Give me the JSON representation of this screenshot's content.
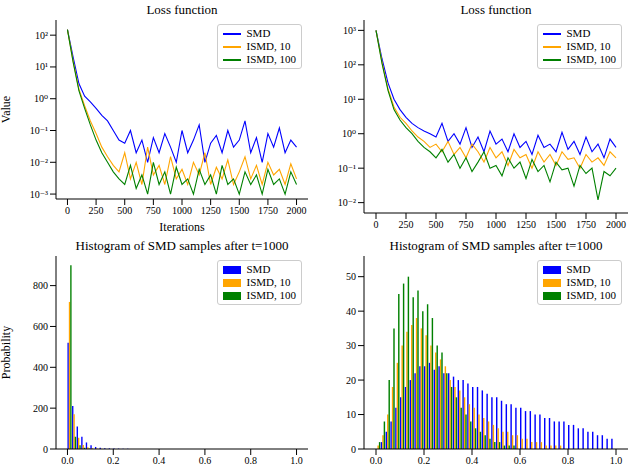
{
  "chart_data": [
    {
      "type": "line",
      "title": "Loss function",
      "xlabel": "Iterations",
      "ylabel": "Value",
      "log": "y",
      "legend": "upper right",
      "x": [
        0,
        50,
        100,
        150,
        200,
        250,
        300,
        350,
        400,
        450,
        500,
        550,
        600,
        650,
        700,
        750,
        800,
        850,
        900,
        950,
        1000,
        1050,
        1100,
        1150,
        1200,
        1250,
        1300,
        1350,
        1400,
        1450,
        1500,
        1550,
        1600,
        1650,
        1700,
        1750,
        1800,
        1850,
        1900,
        1950,
        2000
      ],
      "xlim": [
        -100,
        2100
      ],
      "xticks": [
        0,
        250,
        500,
        750,
        1000,
        1250,
        1500,
        1750,
        2000
      ],
      "ylim": [
        0.0007,
        300
      ],
      "yticks": [
        {
          "value": 0.001,
          "label": "10⁻³"
        },
        {
          "value": 0.01,
          "label": "10⁻²"
        },
        {
          "value": 0.1,
          "label": "10⁻¹"
        },
        {
          "value": 1,
          "label": "10⁰"
        },
        {
          "value": 10,
          "label": "10¹"
        },
        {
          "value": 100,
          "label": "10²"
        }
      ],
      "series": [
        {
          "name": "SMD",
          "color": "#0000ff",
          "values": [
            150,
            20,
            3,
            1.2,
            0.8,
            0.5,
            0.3,
            0.2,
            0.1,
            0.05,
            0.04,
            0.1,
            0.02,
            0.05,
            0.01,
            0.06,
            0.02,
            0.08,
            0.03,
            0.01,
            0.1,
            0.02,
            0.05,
            0.15,
            0.01,
            0.04,
            0.07,
            0.02,
            0.1,
            0.03,
            0.05,
            0.2,
            0.02,
            0.06,
            0.01,
            0.08,
            0.03,
            0.12,
            0.02,
            0.05,
            0.03
          ]
        },
        {
          "name": "ISMD, 10",
          "color": "#ffa500",
          "values": [
            150,
            15,
            2,
            0.6,
            0.2,
            0.08,
            0.03,
            0.015,
            0.008,
            0.005,
            0.02,
            0.003,
            0.01,
            0.002,
            0.03,
            0.004,
            0.008,
            0.002,
            0.015,
            0.003,
            0.006,
            0.002,
            0.01,
            0.004,
            0.02,
            0.002,
            0.007,
            0.003,
            0.012,
            0.002,
            0.005,
            0.015,
            0.003,
            0.008,
            0.002,
            0.01,
            0.004,
            0.006,
            0.002,
            0.009,
            0.003
          ]
        },
        {
          "name": "ISMD, 100",
          "color": "#008000",
          "values": [
            150,
            14,
            1.8,
            0.5,
            0.15,
            0.05,
            0.02,
            0.01,
            0.005,
            0.003,
            0.002,
            0.008,
            0.0015,
            0.004,
            0.001,
            0.01,
            0.002,
            0.005,
            0.001,
            0.007,
            0.002,
            0.003,
            0.001,
            0.006,
            0.002,
            0.004,
            0.001,
            0.008,
            0.002,
            0.003,
            0.001,
            0.005,
            0.002,
            0.004,
            0.001,
            0.006,
            0.002,
            0.003,
            0.001,
            0.005,
            0.002
          ]
        }
      ]
    },
    {
      "type": "line",
      "title": "Loss function",
      "log": "y",
      "legend": "upper right",
      "x": [
        0,
        50,
        100,
        150,
        200,
        250,
        300,
        350,
        400,
        450,
        500,
        550,
        600,
        650,
        700,
        750,
        800,
        850,
        900,
        950,
        1000,
        1050,
        1100,
        1150,
        1200,
        1250,
        1300,
        1350,
        1400,
        1450,
        1500,
        1550,
        1600,
        1650,
        1700,
        1750,
        1800,
        1850,
        1900,
        1950,
        2000
      ],
      "xlim": [
        -100,
        2100
      ],
      "xticks": [
        0,
        250,
        500,
        750,
        1000,
        1250,
        1500,
        1750,
        2000
      ],
      "ylim": [
        0.005,
        2000
      ],
      "yticks": [
        {
          "value": 0.01,
          "label": "10⁻²"
        },
        {
          "value": 0.1,
          "label": "10⁻¹"
        },
        {
          "value": 1,
          "label": "10⁰"
        },
        {
          "value": 10,
          "label": "10¹"
        },
        {
          "value": 100,
          "label": "10²"
        },
        {
          "value": 1000,
          "label": "10³"
        }
      ],
      "series": [
        {
          "name": "SMD",
          "color": "#0000ff",
          "values": [
            1000,
            150,
            30,
            10,
            5,
            3,
            2,
            1.5,
            1.2,
            1,
            0.8,
            2,
            0.6,
            1,
            0.5,
            1.5,
            0.4,
            0.8,
            0.3,
            1.2,
            0.5,
            0.7,
            0.3,
            1,
            0.4,
            0.6,
            0.25,
            0.9,
            0.4,
            0.5,
            0.3,
            1.1,
            0.35,
            0.6,
            0.25,
            0.8,
            0.3,
            0.5,
            0.2,
            0.7,
            0.4
          ]
        },
        {
          "name": "ISMD, 10",
          "color": "#ffa500",
          "values": [
            1000,
            120,
            20,
            6,
            3,
            2,
            1.2,
            0.8,
            0.6,
            0.4,
            0.5,
            0.3,
            0.6,
            0.25,
            0.4,
            0.2,
            0.5,
            0.3,
            0.15,
            0.4,
            0.2,
            0.3,
            0.12,
            0.35,
            0.2,
            0.25,
            0.1,
            0.3,
            0.15,
            0.25,
            0.12,
            0.3,
            0.18,
            0.2,
            0.1,
            0.25,
            0.15,
            0.2,
            0.12,
            0.3,
            0.2
          ]
        },
        {
          "name": "ISMD, 100",
          "color": "#008000",
          "values": [
            1000,
            110,
            18,
            5,
            2.5,
            1.5,
            1,
            0.6,
            0.4,
            0.3,
            0.2,
            0.35,
            0.15,
            0.25,
            0.1,
            0.2,
            0.08,
            0.15,
            0.3,
            0.1,
            0.12,
            0.06,
            0.2,
            0.1,
            0.15,
            0.05,
            0.18,
            0.08,
            0.12,
            0.04,
            0.15,
            0.09,
            0.1,
            0.03,
            0.12,
            0.07,
            0.1,
            0.012,
            0.08,
            0.06,
            0.1
          ]
        }
      ]
    },
    {
      "type": "histogram",
      "title": "Histogram of SMD samples after t=1000",
      "ylabel": "Probability",
      "legend": "upper right",
      "bins": [
        0,
        0.02,
        0.04,
        0.06,
        0.08,
        0.1,
        0.12,
        0.14,
        0.16,
        0.18,
        0.2,
        0.22,
        0.24,
        0.26,
        0.28,
        0.3,
        0.32,
        0.34,
        0.36,
        0.38,
        0.4,
        0.42,
        0.44,
        0.46,
        0.48,
        0.5,
        0.52,
        0.54,
        0.56,
        0.58,
        0.6,
        0.62,
        0.64,
        0.66,
        0.68,
        0.7,
        0.72,
        0.74,
        0.76,
        0.78,
        0.8,
        0.82,
        0.84,
        0.86,
        0.88,
        0.9,
        0.92,
        0.94,
        0.96,
        0.98,
        1.0
      ],
      "xlim": [
        -0.05,
        1.05
      ],
      "xticks": [
        {
          "value": 0,
          "label": "0.0"
        },
        0.2,
        0.4,
        0.6,
        0.8,
        {
          "value": 1,
          "label": "1.0"
        }
      ],
      "ylim": [
        0,
        945
      ],
      "yticks": [
        0,
        200,
        400,
        600,
        800
      ],
      "series": [
        {
          "name": "SMD",
          "color": "#0000ff",
          "values": [
            520,
            210,
            110,
            60,
            32,
            18,
            10,
            6,
            4,
            3,
            2,
            2,
            1,
            1,
            0,
            0,
            0,
            0,
            0,
            0,
            0,
            0,
            0,
            0,
            0,
            0,
            0,
            0,
            0,
            0,
            0,
            0,
            0,
            0,
            0,
            0,
            0,
            0,
            0,
            0,
            0,
            0,
            0,
            0,
            0,
            0,
            0,
            0,
            0,
            0
          ]
        },
        {
          "name": "ISMD, 10",
          "color": "#ffa500",
          "values": [
            720,
            170,
            55,
            20,
            8,
            4,
            2,
            1,
            0,
            0,
            0,
            0,
            0,
            0,
            0,
            0,
            0,
            0,
            0,
            0,
            0,
            0,
            0,
            0,
            0,
            0,
            0,
            0,
            0,
            0,
            0,
            0,
            0,
            0,
            0,
            0,
            0,
            0,
            0,
            0,
            0,
            0,
            0,
            0,
            0,
            0,
            0,
            0,
            0,
            0
          ]
        },
        {
          "name": "ISMD, 100",
          "color": "#008000",
          "values": [
            900,
            60,
            18,
            6,
            2,
            0,
            0,
            0,
            0,
            0,
            0,
            0,
            0,
            0,
            0,
            0,
            0,
            0,
            0,
            0,
            0,
            0,
            0,
            0,
            0,
            0,
            0,
            0,
            0,
            0,
            0,
            0,
            0,
            0,
            0,
            0,
            0,
            0,
            0,
            0,
            0,
            0,
            0,
            0,
            0,
            0,
            0,
            0,
            0,
            0
          ]
        }
      ]
    },
    {
      "type": "histogram",
      "title": "Histogram of SMD samples after t=1000",
      "legend": "upper right",
      "bins": [
        0,
        0.02,
        0.04,
        0.06,
        0.08,
        0.1,
        0.12,
        0.14,
        0.16,
        0.18,
        0.2,
        0.22,
        0.24,
        0.26,
        0.28,
        0.3,
        0.32,
        0.34,
        0.36,
        0.38,
        0.4,
        0.42,
        0.44,
        0.46,
        0.48,
        0.5,
        0.52,
        0.54,
        0.56,
        0.58,
        0.6,
        0.62,
        0.64,
        0.66,
        0.68,
        0.7,
        0.72,
        0.74,
        0.76,
        0.78,
        0.8,
        0.82,
        0.84,
        0.86,
        0.88,
        0.9,
        0.92,
        0.94,
        0.96,
        0.98,
        1.0
      ],
      "xlim": [
        -0.05,
        1.05
      ],
      "xticks": [
        {
          "value": 0,
          "label": "0.0"
        },
        0.2,
        0.4,
        0.6,
        0.8,
        {
          "value": 1,
          "label": "1.0"
        }
      ],
      "ylim": [
        0,
        56
      ],
      "yticks": [
        0,
        10,
        20,
        30,
        40,
        50
      ],
      "series": [
        {
          "name": "SMD",
          "color": "#0000ff",
          "values": [
            0,
            2,
            5,
            8,
            12,
            15,
            18,
            20,
            22,
            24,
            24,
            25,
            23,
            24,
            22,
            22,
            21,
            20,
            20,
            19,
            18,
            18,
            17,
            16,
            15,
            15,
            14,
            13,
            13,
            12,
            12,
            11,
            11,
            10,
            10,
            9,
            9,
            8,
            8,
            8,
            7,
            7,
            6,
            6,
            5,
            5,
            4,
            4,
            3,
            3
          ]
        },
        {
          "name": "ISMD, 10",
          "color": "#ffa500",
          "values": [
            1,
            4,
            10,
            18,
            25,
            30,
            34,
            36,
            38,
            35,
            33,
            30,
            28,
            26,
            24,
            20,
            18,
            17,
            15,
            13,
            12,
            10,
            9,
            8,
            7,
            6,
            5,
            5,
            4,
            4,
            3,
            3,
            2,
            2,
            2,
            1,
            1,
            1,
            1,
            0,
            0,
            0,
            0,
            0,
            0,
            0,
            0,
            0,
            0,
            0
          ]
        },
        {
          "name": "ISMD, 100",
          "color": "#008000",
          "values": [
            2,
            8,
            20,
            35,
            45,
            48,
            50,
            44,
            46,
            40,
            42,
            38,
            30,
            28,
            22,
            18,
            15,
            12,
            10,
            8,
            6,
            5,
            4,
            3,
            2,
            2,
            1,
            1,
            1,
            0,
            0,
            0,
            0,
            0,
            0,
            0,
            0,
            0,
            0,
            0,
            0,
            0,
            0,
            0,
            0,
            0,
            0,
            0,
            0,
            0
          ]
        }
      ]
    }
  ]
}
